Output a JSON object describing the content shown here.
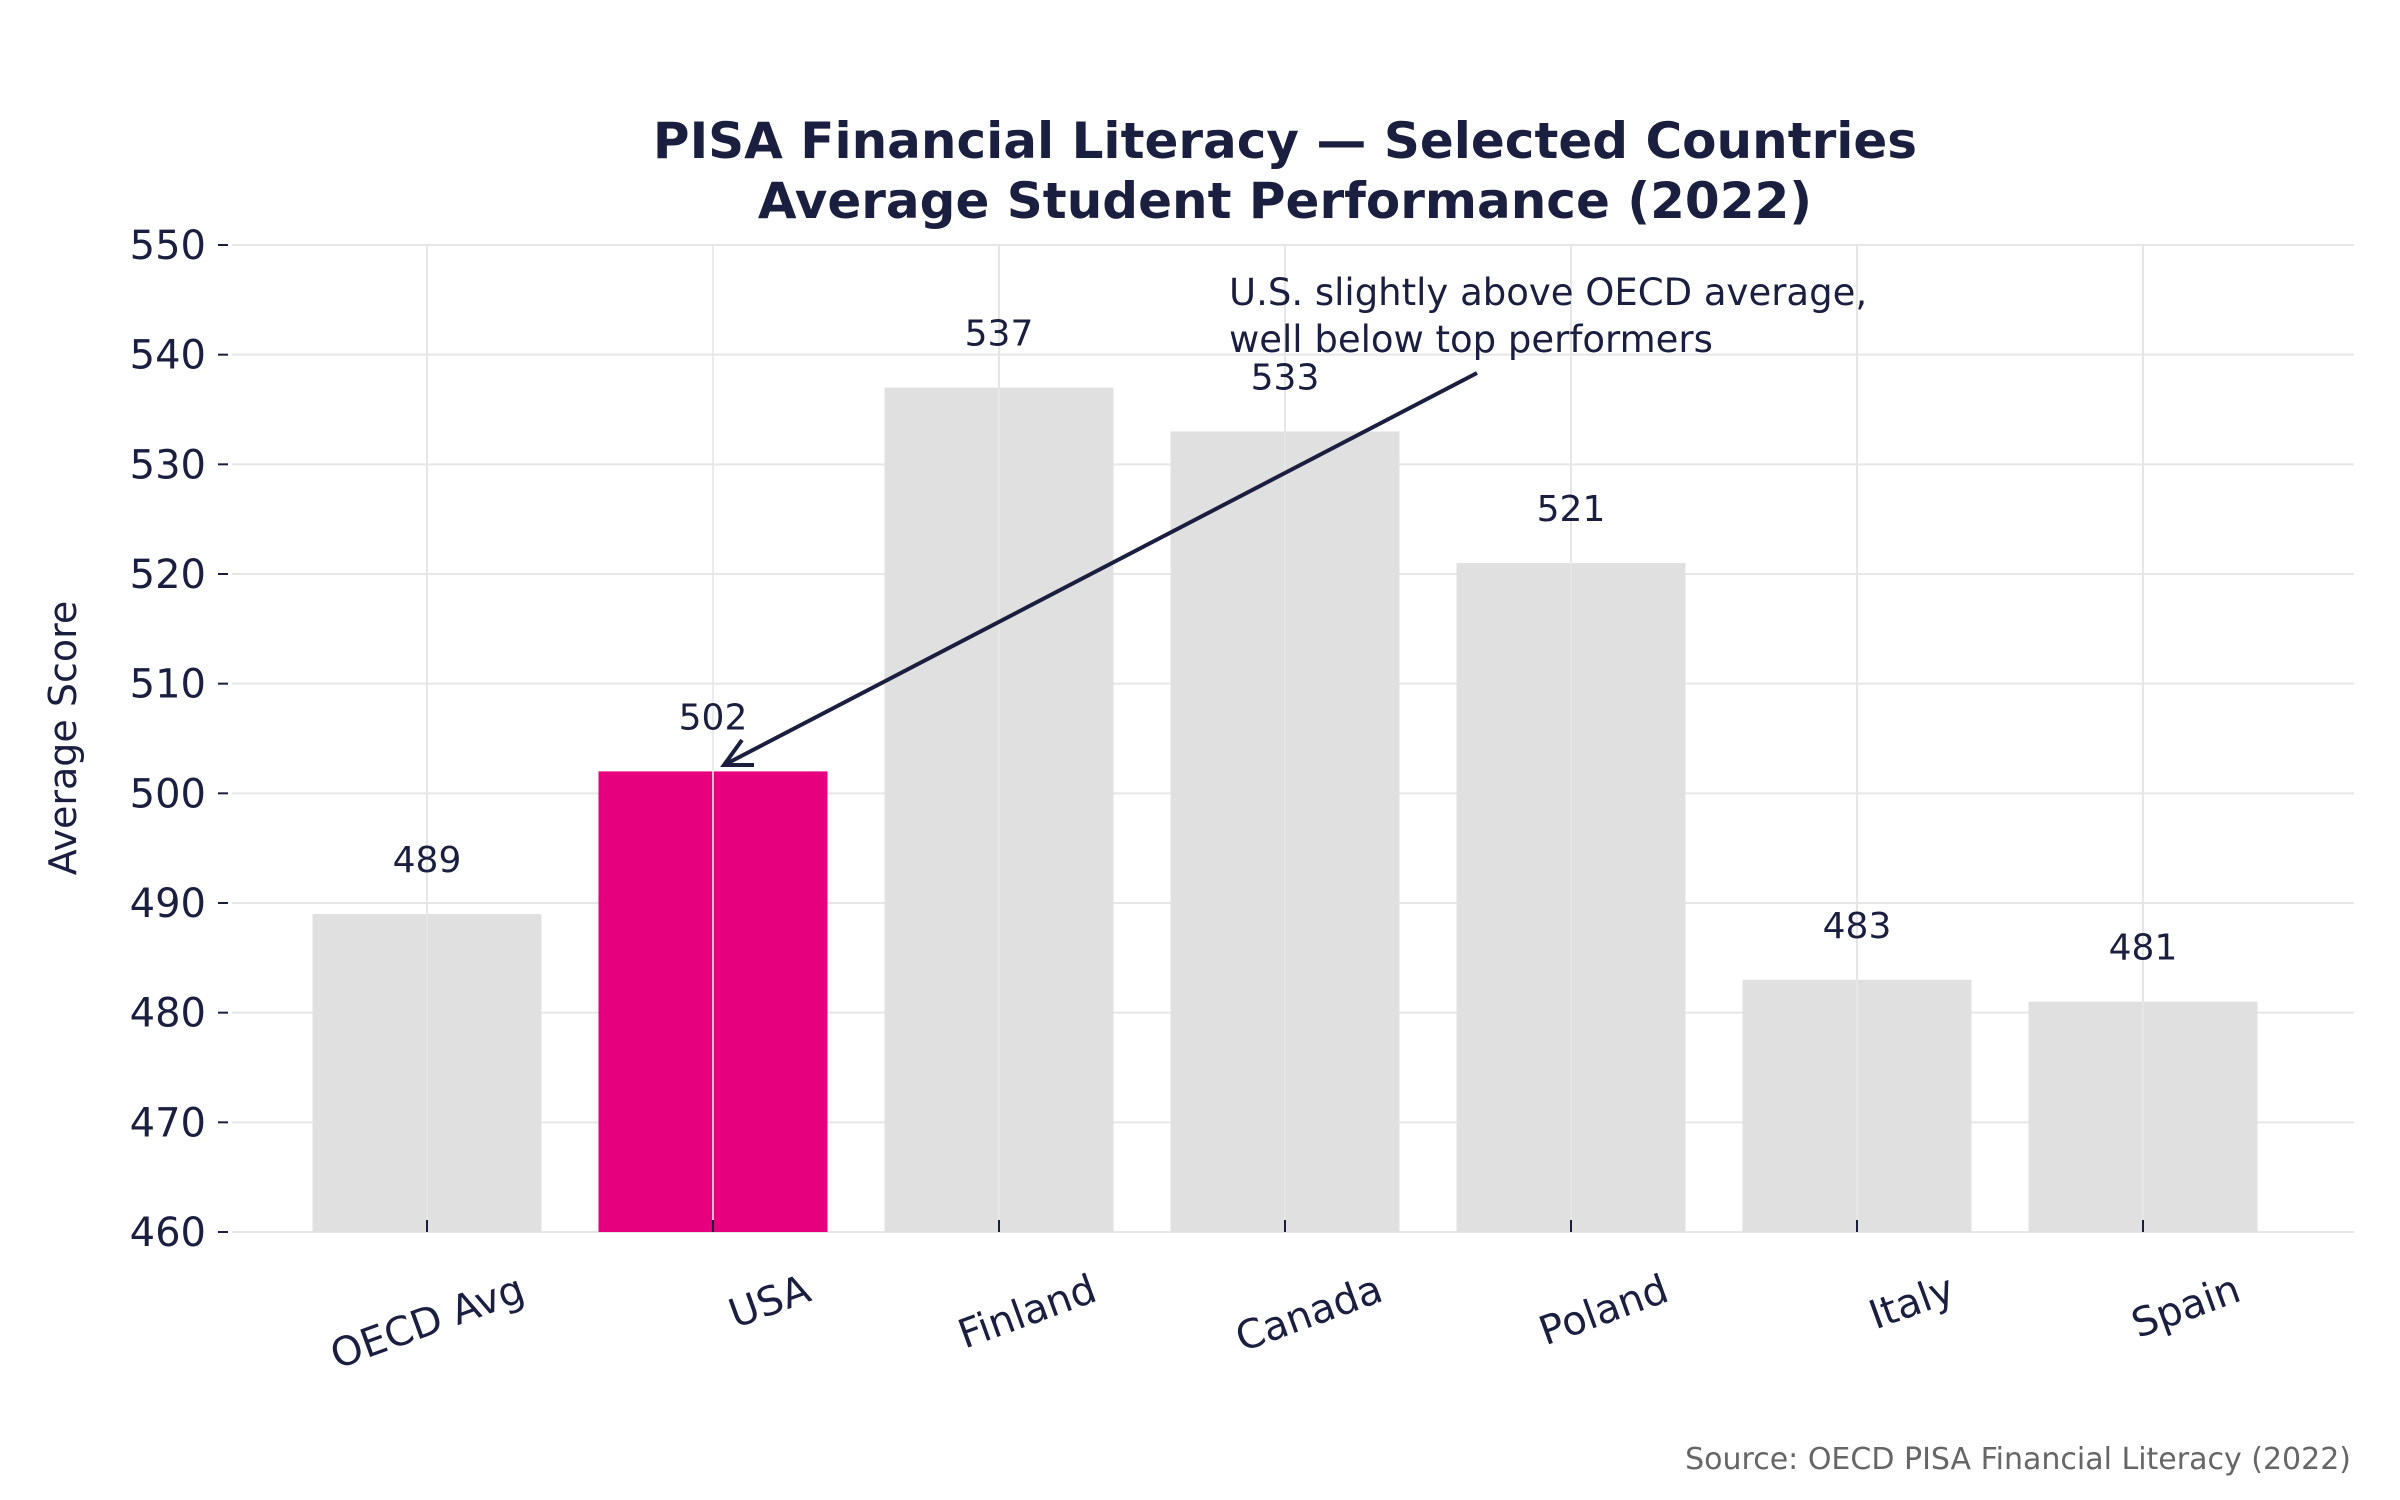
{
  "chart_data": {
    "type": "bar",
    "title": "PISA Financial Literacy — Selected Countries",
    "subtitle": "Average Student Performance (2022)",
    "xlabel": "",
    "ylabel": "Average Score",
    "categories": [
      "OECD Avg",
      "USA",
      "Finland",
      "Canada",
      "Poland",
      "Italy",
      "Spain"
    ],
    "values": [
      489,
      502,
      537,
      533,
      521,
      483,
      481
    ],
    "data_labels": [
      "489",
      "502",
      "537",
      "533",
      "521",
      "483",
      "481"
    ],
    "ylim": [
      460,
      550
    ],
    "yticks": [
      "460",
      "470",
      "480",
      "490",
      "500",
      "510",
      "520",
      "530",
      "540",
      "550"
    ],
    "grid": true,
    "colors": {
      "default": "#e0e0e0",
      "highlight": "#e6007e",
      "text": "#1b1f3f"
    },
    "highlight_category": "USA",
    "annotation": {
      "lines": [
        "U.S. slightly above OECD average,",
        "well below top performers"
      ],
      "target_category": "USA"
    },
    "source": "Source: OECD PISA Financial Literacy (2022)"
  }
}
